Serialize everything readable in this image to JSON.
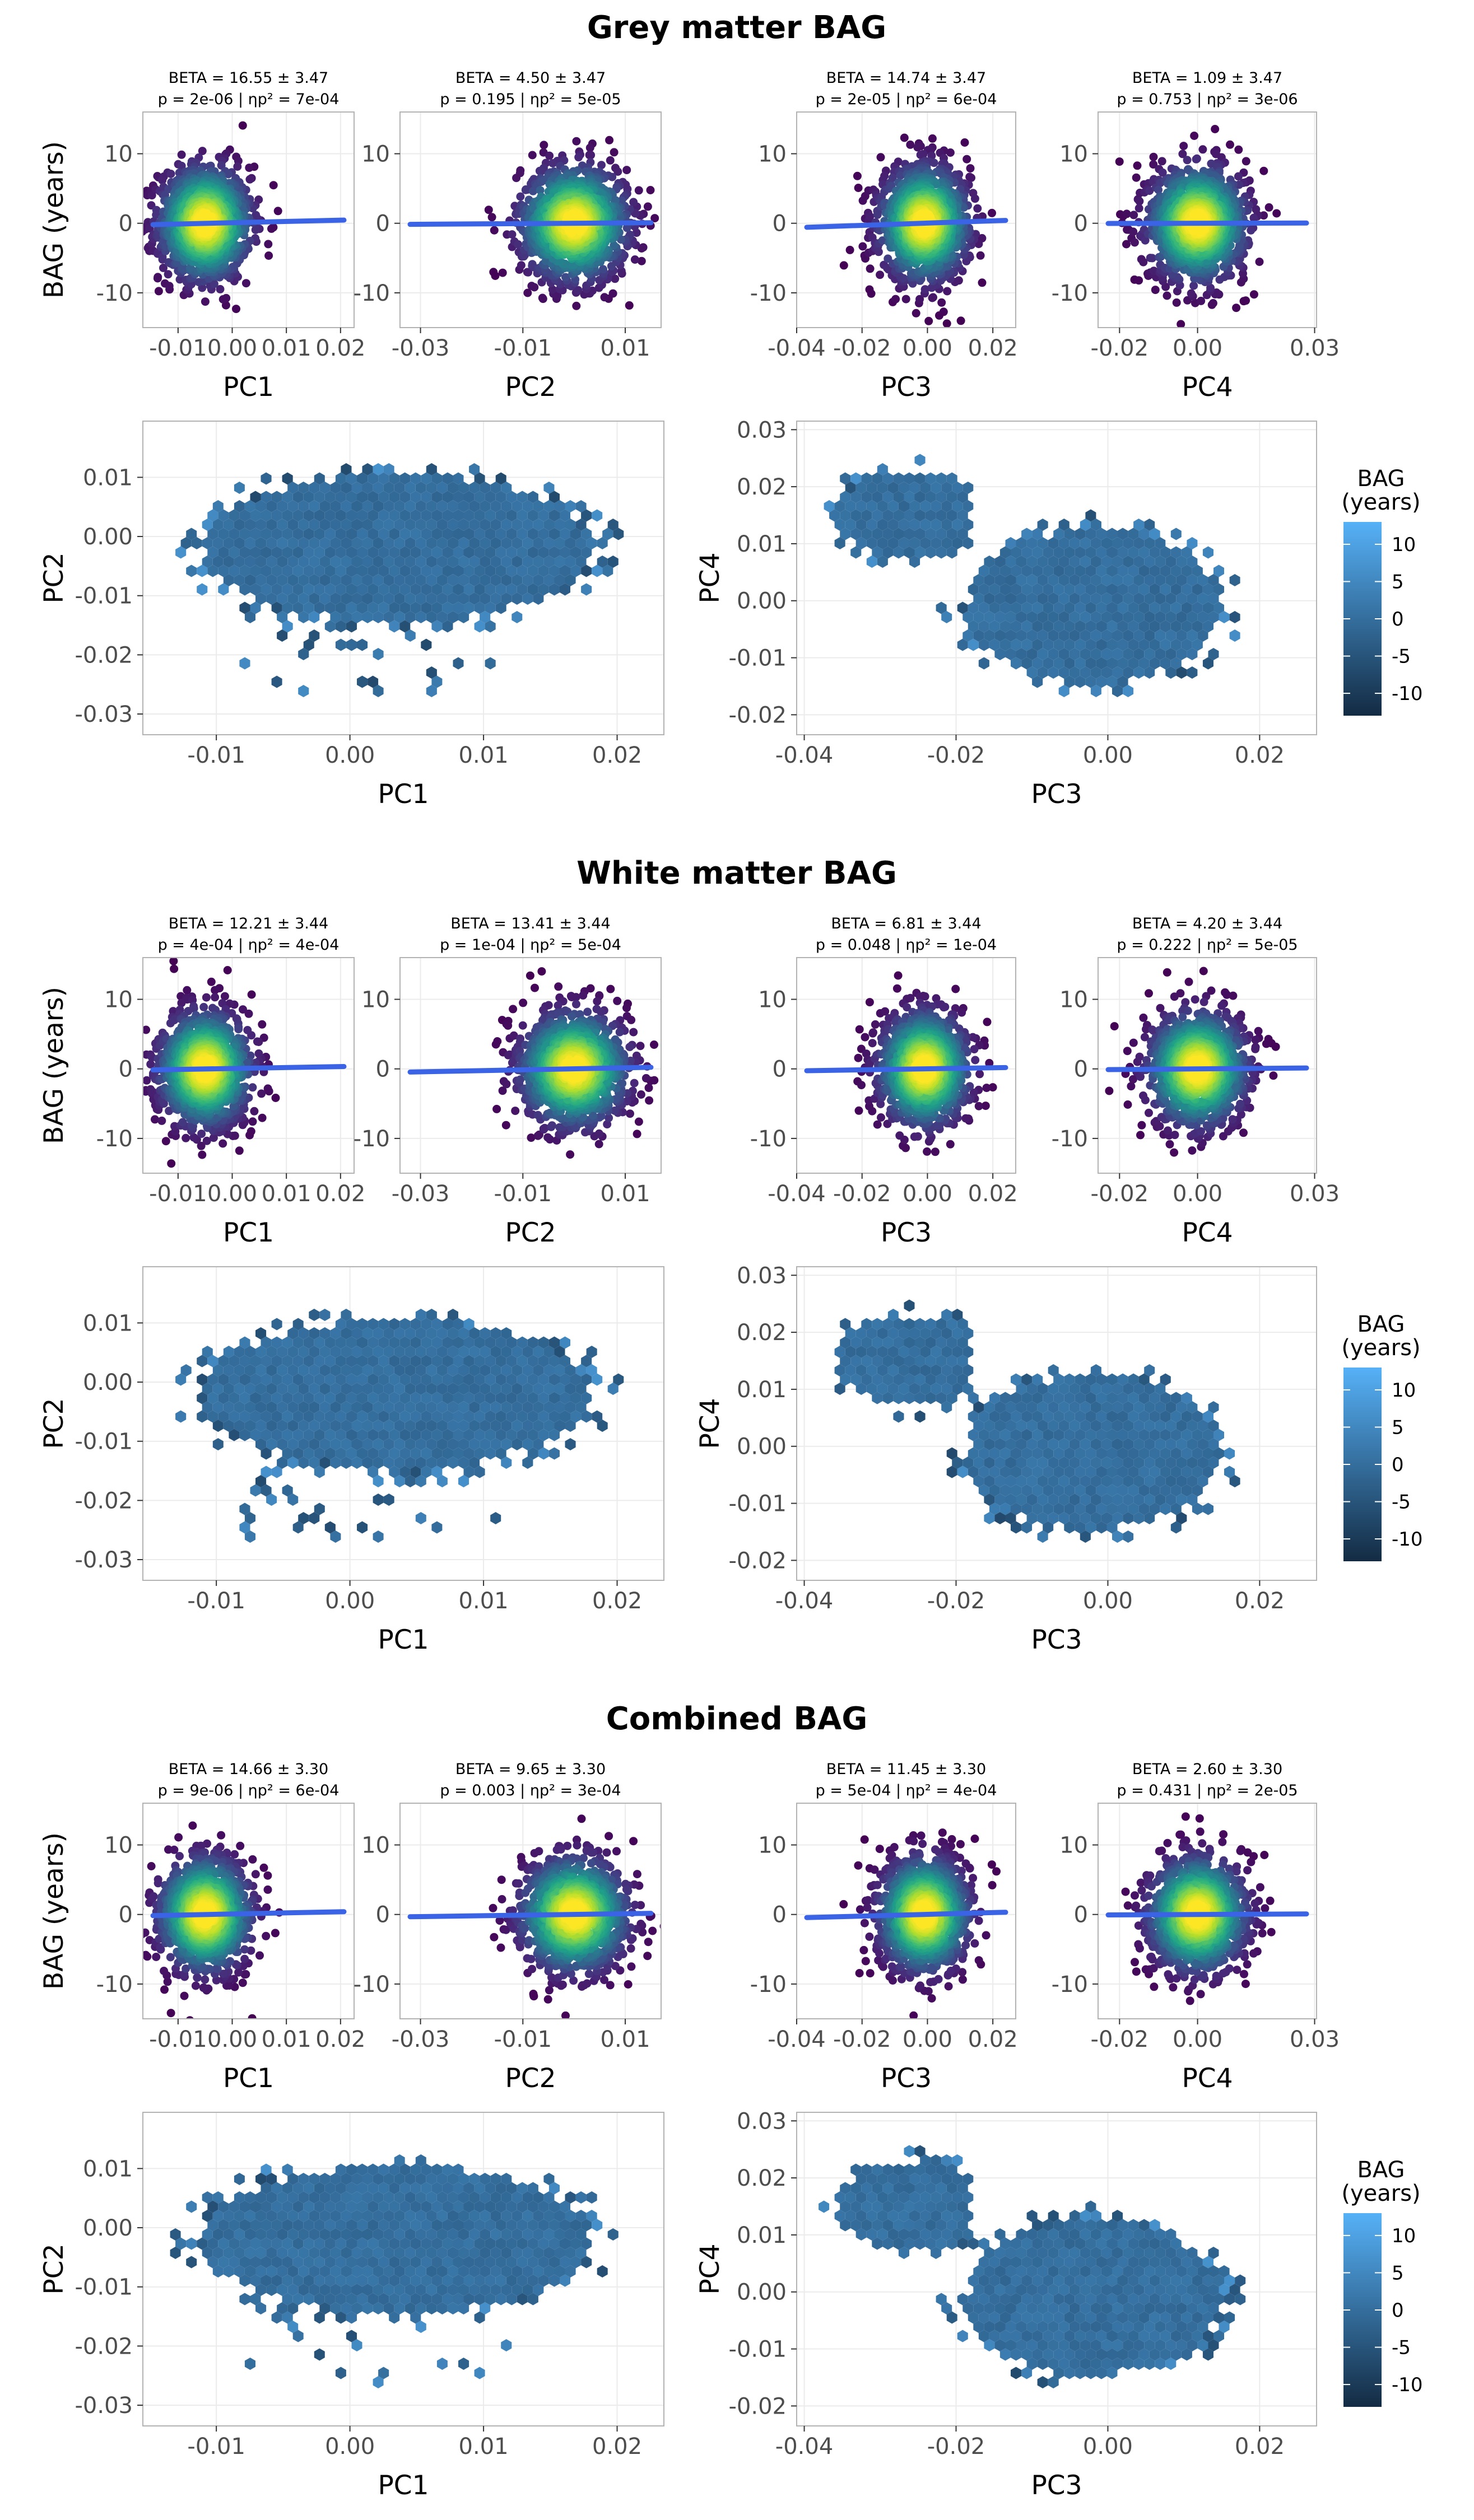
{
  "sections": [
    {
      "title": "Grey matter BAG",
      "scatter_ylabel": "BAG (years)",
      "panels": [
        {
          "line1": "BETA = 16.55 ± 3.47",
          "line2": "p = 2e-06 | ηp² = 7e-04",
          "xlabel": "PC1",
          "x_ticks": [
            "-0.01",
            "0.00",
            "0.01",
            "0.02"
          ],
          "x_tick_values": [
            -0.01,
            0.0,
            0.01,
            0.02
          ],
          "xlim": [
            -0.0165,
            0.0225
          ],
          "x_center": -0.005,
          "x_sd": 0.0042,
          "slope": 16.55
        },
        {
          "line1": "BETA = 4.50 ± 3.47",
          "line2": "p = 0.195 | ηp² = 5e-05",
          "xlabel": "PC2",
          "x_ticks": [
            "-0.03",
            "-0.01",
            "0.01"
          ],
          "x_tick_values": [
            -0.03,
            -0.01,
            0.01
          ],
          "xlim": [
            -0.034,
            0.017
          ],
          "x_center": 0.0,
          "x_sd": 0.0052,
          "slope": 4.5
        },
        {
          "line1": "BETA = 14.74 ± 3.47",
          "line2": "p = 2e-05 | ηp² = 6e-04",
          "xlabel": "PC3",
          "x_ticks": [
            "-0.04",
            "-0.02",
            "0.00",
            "0.02"
          ],
          "x_tick_values": [
            -0.04,
            -0.02,
            0.0,
            0.02
          ],
          "xlim": [
            -0.04,
            0.027
          ],
          "x_center": -0.001,
          "x_sd": 0.0068,
          "slope": 14.74
        },
        {
          "line1": "BETA = 1.09 ± 3.47",
          "line2": "p = 0.753 | ηp² = 3e-06",
          "xlabel": "PC4",
          "x_ticks": [
            "-0.02",
            "0.00",
            "0.03"
          ],
          "x_tick_values": [
            -0.02,
            0.0,
            0.03
          ],
          "xlim": [
            -0.0255,
            0.0305
          ],
          "x_center": 0.0,
          "x_sd": 0.0062,
          "slope": 1.09
        }
      ],
      "legend_title_1": "BAG",
      "legend_title_2": "(years)"
    },
    {
      "title": "White matter BAG",
      "scatter_ylabel": "BAG (years)",
      "panels": [
        {
          "line1": "BETA = 12.21 ± 3.44",
          "line2": "p = 4e-04 | ηp² = 4e-04",
          "xlabel": "PC1",
          "x_ticks": [
            "-0.01",
            "0.00",
            "0.01",
            "0.02"
          ],
          "x_tick_values": [
            -0.01,
            0.0,
            0.01,
            0.02
          ],
          "xlim": [
            -0.0165,
            0.0225
          ],
          "x_center": -0.005,
          "x_sd": 0.0042,
          "slope": 12.21
        },
        {
          "line1": "BETA = 13.41 ± 3.44",
          "line2": "p = 1e-04 | ηp² = 5e-04",
          "xlabel": "PC2",
          "x_ticks": [
            "-0.03",
            "-0.01",
            "0.01"
          ],
          "x_tick_values": [
            -0.03,
            -0.01,
            0.01
          ],
          "xlim": [
            -0.034,
            0.017
          ],
          "x_center": 0.0,
          "x_sd": 0.0052,
          "slope": 13.41
        },
        {
          "line1": "BETA = 6.81 ± 3.44",
          "line2": "p = 0.048 | ηp² = 1e-04",
          "xlabel": "PC3",
          "x_ticks": [
            "-0.04",
            "-0.02",
            "0.00",
            "0.02"
          ],
          "x_tick_values": [
            -0.04,
            -0.02,
            0.0,
            0.02
          ],
          "xlim": [
            -0.04,
            0.027
          ],
          "x_center": -0.001,
          "x_sd": 0.0068,
          "slope": 6.81
        },
        {
          "line1": "BETA = 4.20 ± 3.44",
          "line2": "p = 0.222 | ηp² = 5e-05",
          "xlabel": "PC4",
          "x_ticks": [
            "-0.02",
            "0.00",
            "0.03"
          ],
          "x_tick_values": [
            -0.02,
            0.0,
            0.03
          ],
          "xlim": [
            -0.0255,
            0.0305
          ],
          "x_center": 0.0,
          "x_sd": 0.0062,
          "slope": 4.2
        }
      ],
      "legend_title_1": "BAG",
      "legend_title_2": "(years)"
    },
    {
      "title": "Combined BAG",
      "scatter_ylabel": "BAG (years)",
      "panels": [
        {
          "line1": "BETA = 14.66 ± 3.30",
          "line2": "p = 9e-06 | ηp² = 6e-04",
          "xlabel": "PC1",
          "x_ticks": [
            "-0.01",
            "0.00",
            "0.01",
            "0.02"
          ],
          "x_tick_values": [
            -0.01,
            0.0,
            0.01,
            0.02
          ],
          "xlim": [
            -0.0165,
            0.0225
          ],
          "x_center": -0.005,
          "x_sd": 0.0042,
          "slope": 14.66
        },
        {
          "line1": "BETA = 9.65 ± 3.30",
          "line2": "p = 0.003 | ηp² = 3e-04",
          "xlabel": "PC2",
          "x_ticks": [
            "-0.03",
            "-0.01",
            "0.01"
          ],
          "x_tick_values": [
            -0.03,
            -0.01,
            0.01
          ],
          "xlim": [
            -0.034,
            0.017
          ],
          "x_center": 0.0,
          "x_sd": 0.0052,
          "slope": 9.65
        },
        {
          "line1": "BETA = 11.45 ± 3.30",
          "line2": "p = 5e-04 | ηp² = 4e-04",
          "xlabel": "PC3",
          "x_ticks": [
            "-0.04",
            "-0.02",
            "0.00",
            "0.02"
          ],
          "x_tick_values": [
            -0.04,
            -0.02,
            0.0,
            0.02
          ],
          "xlim": [
            -0.04,
            0.027
          ],
          "x_center": -0.001,
          "x_sd": 0.0068,
          "slope": 11.45
        },
        {
          "line1": "BETA = 2.60 ± 3.30",
          "line2": "p = 0.431 | ηp² = 2e-05",
          "xlabel": "PC4",
          "x_ticks": [
            "-0.02",
            "0.00",
            "0.03"
          ],
          "x_tick_values": [
            -0.02,
            0.0,
            0.03
          ],
          "xlim": [
            -0.0255,
            0.0305
          ],
          "x_center": 0.0,
          "x_sd": 0.0062,
          "slope": 2.6
        }
      ],
      "legend_title_1": "BAG",
      "legend_title_2": "(years)"
    }
  ],
  "chart_data": [
    {
      "type": "scatter",
      "description_group": "BAG vs PC scatter panels",
      "y_ticks": [
        "10",
        "0",
        "-10"
      ],
      "y_tick_values": [
        10,
        0,
        -10
      ],
      "ylim": [
        -15,
        16
      ],
      "point_colors": "viridis density",
      "regression_line_color": "#3b63e6"
    },
    {
      "type": "heatmap",
      "description_group": "hexbin PC maps colored by BAG",
      "left": {
        "xlabel": "PC1",
        "ylabel": "PC2",
        "x_ticks": [
          "-0.01",
          "0.00",
          "0.01",
          "0.02"
        ],
        "x_tick_values": [
          -0.01,
          0.0,
          0.01,
          0.02
        ],
        "y_ticks": [
          "0.01",
          "0.00",
          "-0.01",
          "-0.02",
          "-0.03"
        ],
        "y_tick_values": [
          0.01,
          0.0,
          -0.01,
          -0.02,
          -0.03
        ],
        "xlim": [
          -0.0155,
          0.0235
        ],
        "ylim": [
          -0.0335,
          0.0195
        ]
      },
      "right": {
        "xlabel": "PC3",
        "ylabel": "PC4",
        "x_ticks": [
          "-0.04",
          "-0.02",
          "0.00",
          "0.02"
        ],
        "x_tick_values": [
          -0.04,
          -0.02,
          0.0,
          0.02
        ],
        "y_ticks": [
          "0.03",
          "0.02",
          "0.01",
          "0.00",
          "-0.01",
          "-0.02"
        ],
        "y_tick_values": [
          0.03,
          0.02,
          0.01,
          0.0,
          -0.01,
          -0.02
        ],
        "xlim": [
          -0.041,
          0.0275
        ],
        "ylim": [
          -0.0235,
          0.0315
        ]
      },
      "legend_ticks": [
        "10",
        "5",
        "0",
        "-5",
        "-10"
      ],
      "legend_tick_values": [
        10,
        5,
        0,
        -5,
        -10
      ],
      "legend_range": [
        -13,
        13
      ],
      "legend_colors": {
        "low": "#132b43",
        "high": "#56b1f7"
      }
    }
  ]
}
